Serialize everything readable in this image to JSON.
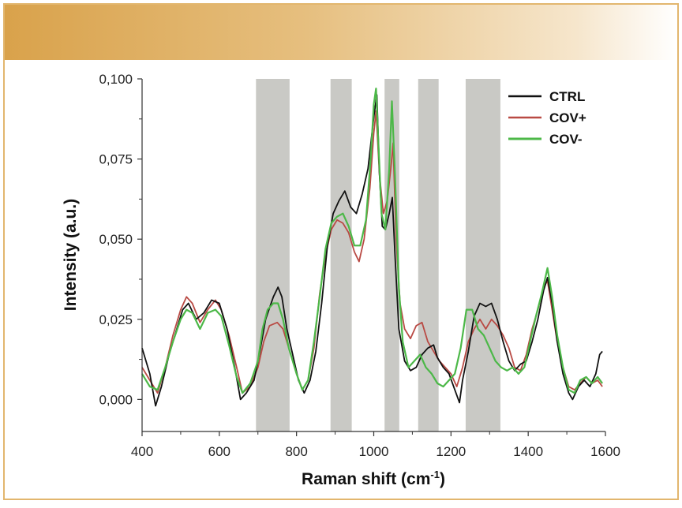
{
  "chart_data": {
    "type": "line",
    "xlabel": "Raman shift (cm",
    "xlabel_sup": "-1",
    "xlabel_tail": ")",
    "ylabel": "Intensity (a.u.)",
    "xlim": [
      400,
      1600
    ],
    "ylim": [
      -0.01,
      0.1
    ],
    "xticks": [
      400,
      600,
      800,
      1000,
      1200,
      1400,
      1600
    ],
    "xtick_labels": [
      "400",
      "600",
      "800",
      "1000",
      "1200",
      "1400",
      "1600"
    ],
    "yticks": [
      0.0,
      0.025,
      0.05,
      0.075,
      0.1
    ],
    "ytick_labels": [
      "0,000",
      "0,025",
      "0,050",
      "0,075",
      "0,100"
    ],
    "grid": false,
    "legend_position": "top-right",
    "shaded_regions": [
      [
        695,
        782
      ],
      [
        888,
        943
      ],
      [
        1028,
        1066
      ],
      [
        1115,
        1168
      ],
      [
        1238,
        1328
      ]
    ],
    "series": [
      {
        "name": "CTRL",
        "color": "#111111",
        "points": [
          [
            400,
            0.016
          ],
          [
            420,
            0.008
          ],
          [
            435,
            -0.002
          ],
          [
            450,
            0.004
          ],
          [
            470,
            0.014
          ],
          [
            490,
            0.022
          ],
          [
            505,
            0.028
          ],
          [
            520,
            0.03
          ],
          [
            540,
            0.025
          ],
          [
            560,
            0.027
          ],
          [
            580,
            0.031
          ],
          [
            600,
            0.03
          ],
          [
            620,
            0.022
          ],
          [
            640,
            0.01
          ],
          [
            655,
            0.0
          ],
          [
            670,
            0.002
          ],
          [
            690,
            0.006
          ],
          [
            705,
            0.015
          ],
          [
            720,
            0.025
          ],
          [
            740,
            0.032
          ],
          [
            752,
            0.035
          ],
          [
            762,
            0.032
          ],
          [
            775,
            0.022
          ],
          [
            790,
            0.014
          ],
          [
            805,
            0.006
          ],
          [
            820,
            0.002
          ],
          [
            835,
            0.006
          ],
          [
            850,
            0.015
          ],
          [
            865,
            0.03
          ],
          [
            880,
            0.048
          ],
          [
            895,
            0.058
          ],
          [
            910,
            0.062
          ],
          [
            925,
            0.065
          ],
          [
            940,
            0.06
          ],
          [
            955,
            0.058
          ],
          [
            970,
            0.064
          ],
          [
            985,
            0.072
          ],
          [
            1000,
            0.088
          ],
          [
            1008,
            0.095
          ],
          [
            1015,
            0.07
          ],
          [
            1022,
            0.054
          ],
          [
            1030,
            0.053
          ],
          [
            1040,
            0.058
          ],
          [
            1048,
            0.063
          ],
          [
            1055,
            0.045
          ],
          [
            1065,
            0.022
          ],
          [
            1080,
            0.012
          ],
          [
            1095,
            0.009
          ],
          [
            1110,
            0.01
          ],
          [
            1125,
            0.014
          ],
          [
            1140,
            0.016
          ],
          [
            1155,
            0.017
          ],
          [
            1165,
            0.013
          ],
          [
            1180,
            0.01
          ],
          [
            1195,
            0.008
          ],
          [
            1210,
            0.003
          ],
          [
            1222,
            -0.001
          ],
          [
            1230,
            0.006
          ],
          [
            1245,
            0.015
          ],
          [
            1260,
            0.026
          ],
          [
            1275,
            0.03
          ],
          [
            1290,
            0.029
          ],
          [
            1305,
            0.03
          ],
          [
            1320,
            0.025
          ],
          [
            1335,
            0.018
          ],
          [
            1350,
            0.012
          ],
          [
            1365,
            0.009
          ],
          [
            1380,
            0.011
          ],
          [
            1395,
            0.012
          ],
          [
            1410,
            0.018
          ],
          [
            1425,
            0.025
          ],
          [
            1440,
            0.034
          ],
          [
            1450,
            0.038
          ],
          [
            1462,
            0.03
          ],
          [
            1475,
            0.018
          ],
          [
            1490,
            0.008
          ],
          [
            1505,
            0.002
          ],
          [
            1515,
            0.0
          ],
          [
            1530,
            0.004
          ],
          [
            1545,
            0.006
          ],
          [
            1560,
            0.004
          ],
          [
            1575,
            0.008
          ],
          [
            1585,
            0.014
          ],
          [
            1592,
            0.015
          ]
        ]
      },
      {
        "name": "COV+",
        "color": "#b94a44",
        "points": [
          [
            400,
            0.01
          ],
          [
            420,
            0.006
          ],
          [
            440,
            0.002
          ],
          [
            460,
            0.01
          ],
          [
            480,
            0.02
          ],
          [
            500,
            0.028
          ],
          [
            515,
            0.032
          ],
          [
            530,
            0.03
          ],
          [
            550,
            0.024
          ],
          [
            570,
            0.028
          ],
          [
            590,
            0.031
          ],
          [
            605,
            0.028
          ],
          [
            625,
            0.02
          ],
          [
            645,
            0.01
          ],
          [
            660,
            0.002
          ],
          [
            680,
            0.004
          ],
          [
            700,
            0.01
          ],
          [
            715,
            0.018
          ],
          [
            730,
            0.023
          ],
          [
            750,
            0.024
          ],
          [
            765,
            0.022
          ],
          [
            780,
            0.016
          ],
          [
            800,
            0.008
          ],
          [
            815,
            0.003
          ],
          [
            830,
            0.006
          ],
          [
            845,
            0.016
          ],
          [
            860,
            0.033
          ],
          [
            875,
            0.045
          ],
          [
            890,
            0.053
          ],
          [
            905,
            0.056
          ],
          [
            920,
            0.055
          ],
          [
            935,
            0.052
          ],
          [
            950,
            0.046
          ],
          [
            962,
            0.043
          ],
          [
            975,
            0.05
          ],
          [
            990,
            0.066
          ],
          [
            1000,
            0.083
          ],
          [
            1006,
            0.09
          ],
          [
            1015,
            0.07
          ],
          [
            1025,
            0.058
          ],
          [
            1035,
            0.062
          ],
          [
            1045,
            0.073
          ],
          [
            1050,
            0.08
          ],
          [
            1058,
            0.05
          ],
          [
            1068,
            0.03
          ],
          [
            1080,
            0.022
          ],
          [
            1095,
            0.019
          ],
          [
            1110,
            0.023
          ],
          [
            1125,
            0.024
          ],
          [
            1140,
            0.018
          ],
          [
            1155,
            0.015
          ],
          [
            1170,
            0.012
          ],
          [
            1185,
            0.01
          ],
          [
            1200,
            0.008
          ],
          [
            1215,
            0.004
          ],
          [
            1230,
            0.01
          ],
          [
            1245,
            0.018
          ],
          [
            1260,
            0.022
          ],
          [
            1275,
            0.025
          ],
          [
            1290,
            0.022
          ],
          [
            1305,
            0.025
          ],
          [
            1320,
            0.023
          ],
          [
            1335,
            0.02
          ],
          [
            1350,
            0.016
          ],
          [
            1365,
            0.01
          ],
          [
            1380,
            0.009
          ],
          [
            1395,
            0.014
          ],
          [
            1410,
            0.022
          ],
          [
            1425,
            0.028
          ],
          [
            1440,
            0.035
          ],
          [
            1450,
            0.037
          ],
          [
            1462,
            0.028
          ],
          [
            1475,
            0.018
          ],
          [
            1490,
            0.01
          ],
          [
            1505,
            0.004
          ],
          [
            1520,
            0.003
          ],
          [
            1535,
            0.005
          ],
          [
            1550,
            0.007
          ],
          [
            1565,
            0.005
          ],
          [
            1580,
            0.006
          ],
          [
            1592,
            0.004
          ]
        ]
      },
      {
        "name": "COV-",
        "color": "#4cb848",
        "points": [
          [
            400,
            0.008
          ],
          [
            420,
            0.004
          ],
          [
            440,
            0.003
          ],
          [
            460,
            0.01
          ],
          [
            480,
            0.018
          ],
          [
            500,
            0.025
          ],
          [
            515,
            0.028
          ],
          [
            530,
            0.027
          ],
          [
            550,
            0.022
          ],
          [
            570,
            0.027
          ],
          [
            590,
            0.028
          ],
          [
            605,
            0.026
          ],
          [
            625,
            0.017
          ],
          [
            645,
            0.007
          ],
          [
            660,
            0.002
          ],
          [
            680,
            0.005
          ],
          [
            700,
            0.012
          ],
          [
            712,
            0.022
          ],
          [
            725,
            0.028
          ],
          [
            740,
            0.03
          ],
          [
            752,
            0.03
          ],
          [
            765,
            0.025
          ],
          [
            780,
            0.016
          ],
          [
            800,
            0.008
          ],
          [
            815,
            0.003
          ],
          [
            830,
            0.006
          ],
          [
            845,
            0.018
          ],
          [
            860,
            0.032
          ],
          [
            875,
            0.047
          ],
          [
            890,
            0.055
          ],
          [
            905,
            0.057
          ],
          [
            920,
            0.058
          ],
          [
            935,
            0.054
          ],
          [
            950,
            0.048
          ],
          [
            965,
            0.048
          ],
          [
            980,
            0.056
          ],
          [
            992,
            0.075
          ],
          [
            1000,
            0.092
          ],
          [
            1006,
            0.097
          ],
          [
            1012,
            0.08
          ],
          [
            1020,
            0.058
          ],
          [
            1030,
            0.053
          ],
          [
            1040,
            0.072
          ],
          [
            1047,
            0.093
          ],
          [
            1055,
            0.07
          ],
          [
            1065,
            0.035
          ],
          [
            1075,
            0.018
          ],
          [
            1090,
            0.01
          ],
          [
            1105,
            0.012
          ],
          [
            1120,
            0.014
          ],
          [
            1135,
            0.01
          ],
          [
            1150,
            0.008
          ],
          [
            1165,
            0.005
          ],
          [
            1180,
            0.004
          ],
          [
            1195,
            0.006
          ],
          [
            1210,
            0.008
          ],
          [
            1225,
            0.016
          ],
          [
            1240,
            0.028
          ],
          [
            1255,
            0.028
          ],
          [
            1270,
            0.022
          ],
          [
            1285,
            0.02
          ],
          [
            1300,
            0.016
          ],
          [
            1315,
            0.012
          ],
          [
            1330,
            0.01
          ],
          [
            1345,
            0.009
          ],
          [
            1360,
            0.01
          ],
          [
            1375,
            0.008
          ],
          [
            1390,
            0.01
          ],
          [
            1405,
            0.018
          ],
          [
            1420,
            0.026
          ],
          [
            1435,
            0.033
          ],
          [
            1450,
            0.041
          ],
          [
            1462,
            0.032
          ],
          [
            1475,
            0.02
          ],
          [
            1490,
            0.01
          ],
          [
            1505,
            0.003
          ],
          [
            1520,
            0.002
          ],
          [
            1535,
            0.006
          ],
          [
            1550,
            0.007
          ],
          [
            1565,
            0.005
          ],
          [
            1580,
            0.007
          ],
          [
            1592,
            0.005
          ]
        ]
      }
    ]
  }
}
